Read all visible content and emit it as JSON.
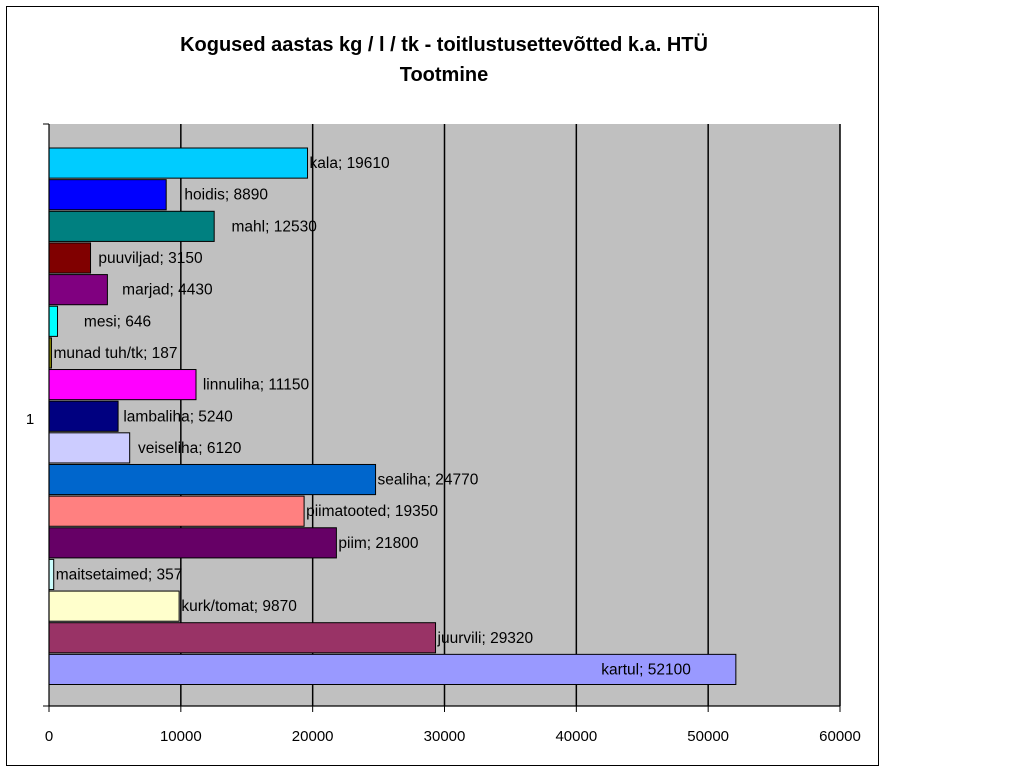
{
  "chart_data": {
    "type": "bar",
    "orientation": "horizontal",
    "title": "Kogused aastas kg / l / tk - toitlustusettevõtted k.a. HTÜ",
    "subtitle": "Tootmine",
    "category_label": "1",
    "xlim": [
      0,
      60000
    ],
    "xticks": [
      "0",
      "10000",
      "20000",
      "30000",
      "40000",
      "50000",
      "60000"
    ],
    "grid": "vertical",
    "plot_background": "#c0c0c0",
    "bars": [
      {
        "name": "kala",
        "value": 19610,
        "label": "kala; 19610",
        "color": "#00ccff"
      },
      {
        "name": "hoidis",
        "value": 8890,
        "label": "hoidis; 8890",
        "color": "#0000ff"
      },
      {
        "name": "mahl",
        "value": 12530,
        "label": "mahl; 12530",
        "color": "#008080"
      },
      {
        "name": "puuviljad",
        "value": 3150,
        "label": "puuviljad; 3150",
        "color": "#800000"
      },
      {
        "name": "marjad",
        "value": 4430,
        "label": "marjad; 4430",
        "color": "#800080"
      },
      {
        "name": "mesi",
        "value": 646,
        "label": "mesi; 646",
        "color": "#00ffff"
      },
      {
        "name": "munad tuh/tk",
        "value": 187,
        "label": "munad tuh/tk; 187",
        "color": "#808000"
      },
      {
        "name": "linnuliha",
        "value": 11150,
        "label": "linnuliha; 11150",
        "color": "#ff00ff"
      },
      {
        "name": "lambaliha",
        "value": 5240,
        "label": "lambaliha; 5240",
        "color": "#000080"
      },
      {
        "name": "veiseliha",
        "value": 6120,
        "label": "veiseliha; 6120",
        "color": "#ccccff"
      },
      {
        "name": "sealiha",
        "value": 24770,
        "label": "sealiha; 24770",
        "color": "#0066cc"
      },
      {
        "name": "piimatooted",
        "value": 19350,
        "label": "piimatooted; 19350",
        "color": "#ff8080"
      },
      {
        "name": "piim",
        "value": 21800,
        "label": "piim; 21800",
        "color": "#660066"
      },
      {
        "name": "maitsetaimed",
        "value": 357,
        "label": "maitsetaimed; 357",
        "color": "#ccffff"
      },
      {
        "name": "kurk/tomat",
        "value": 9870,
        "label": "kurk/tomat; 9870",
        "color": "#ffffcc"
      },
      {
        "name": "juurvili",
        "value": 29320,
        "label": "juurvili; 29320",
        "color": "#993366"
      },
      {
        "name": "kartul",
        "value": 52100,
        "label": "kartul; 52100",
        "color": "#9999ff"
      }
    ]
  }
}
